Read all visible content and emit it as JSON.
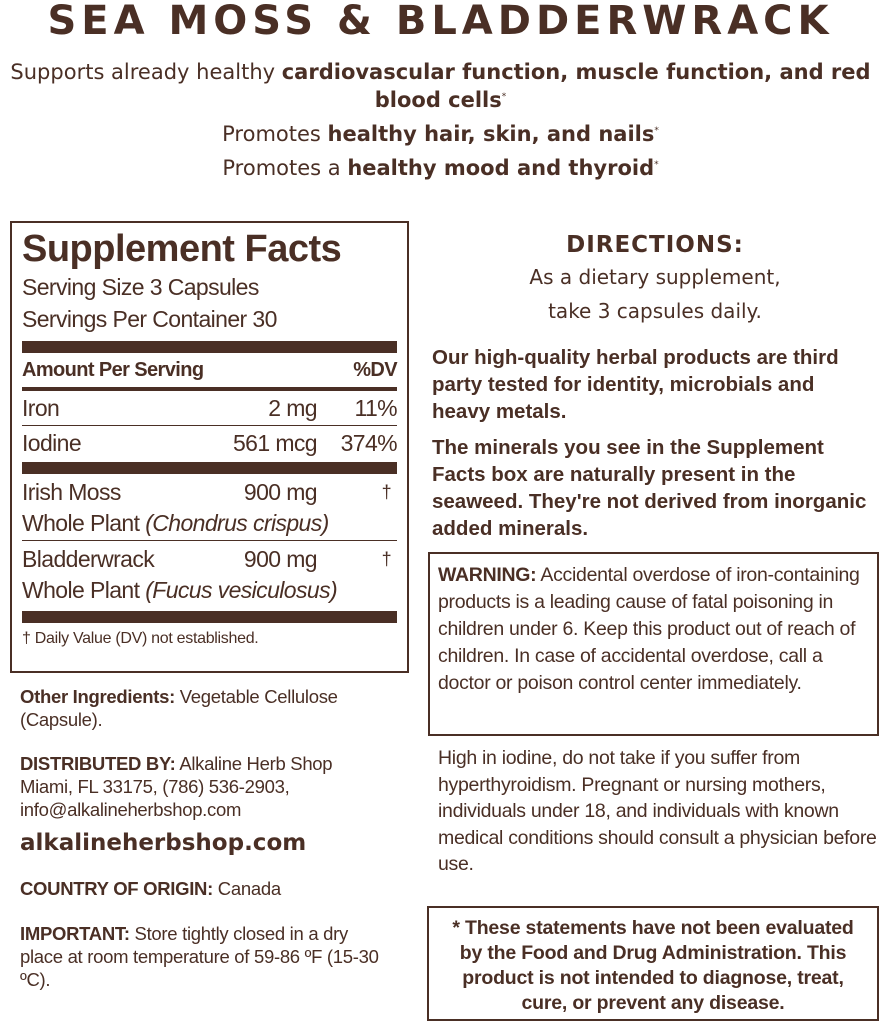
{
  "title": "SEA MOSS & BLADDERWRACK",
  "claims": [
    {
      "plain": "Supports already healthy ",
      "bold": "cardiovascular function, muscle function, and red blood cells",
      "mark": "*"
    },
    {
      "plain": "Promotes ",
      "bold": "healthy hair, skin, and nails",
      "mark": "*"
    },
    {
      "plain": "Promotes a ",
      "bold": "healthy mood and thyroid",
      "mark": "*"
    }
  ],
  "facts": {
    "heading": "Supplement Facts",
    "serving_size": "Serving Size 3 Capsules",
    "servings": "Servings Per Container 30",
    "col_amount": "Amount Per Serving",
    "col_dv": "%DV",
    "nutrients": [
      {
        "name": "Iron",
        "amount": "2 mg",
        "dv": "11%"
      },
      {
        "name": "Iodine",
        "amount": "561 mcg",
        "dv": "374%"
      }
    ],
    "herbs": [
      {
        "name": "Irish Moss",
        "amount": "900 mg",
        "dv": "†",
        "part": "Whole Plant ",
        "latin": "(Chondrus crispus)"
      },
      {
        "name": "Bladderwrack",
        "amount": "900 mg",
        "dv": "†",
        "part": "Whole Plant ",
        "latin": "(Fucus vesiculosus)"
      }
    ],
    "footnote": "† Daily Value (DV) not established."
  },
  "other": {
    "label": "Other Ingredients:",
    "text": " Vegetable Cellulose (Capsule)."
  },
  "distributed": {
    "label": "DISTRIBUTED BY:",
    "text": " Alkaline Herb Shop Miami, FL 33175, (786) 536-2903, info@alkalineherbshop.com"
  },
  "website": "alkalineherbshop.com",
  "origin": {
    "label": "COUNTRY OF ORIGIN:",
    "text": " Canada"
  },
  "important": {
    "label": "IMPORTANT:",
    "text": " Store tightly closed in a dry place at room temperature of 59-86 ºF (15-30 ºC)."
  },
  "directions": {
    "heading": "DIRECTIONS:",
    "line1": "As a dietary supplement,",
    "line2": "take 3 capsules daily."
  },
  "quality": "Our high-quality herbal products are third party tested for identity, microbials and heavy metals.",
  "minerals": "The minerals you see in the Supplement Facts box are naturally present in the seaweed. They're not derived from inorganic added minerals.",
  "warning": {
    "label": "WARNING:",
    "text": " Accidental overdose of iron-containing products is a leading cause of fatal poisoning in children under 6. Keep this product out of reach of children. In case of accidental overdose, call a doctor or poison control center immediately."
  },
  "iodine_caution": "High in iodine, do not take if you suffer from hyperthyroidism. Pregnant or nursing mothers, individuals under 18, and individuals with known medical conditions should consult a physician before use.",
  "disclaimer": "* These statements have not been evaluated by the Food and Drug Administration. This product is not intended to diagnose, treat, cure, or prevent any disease."
}
